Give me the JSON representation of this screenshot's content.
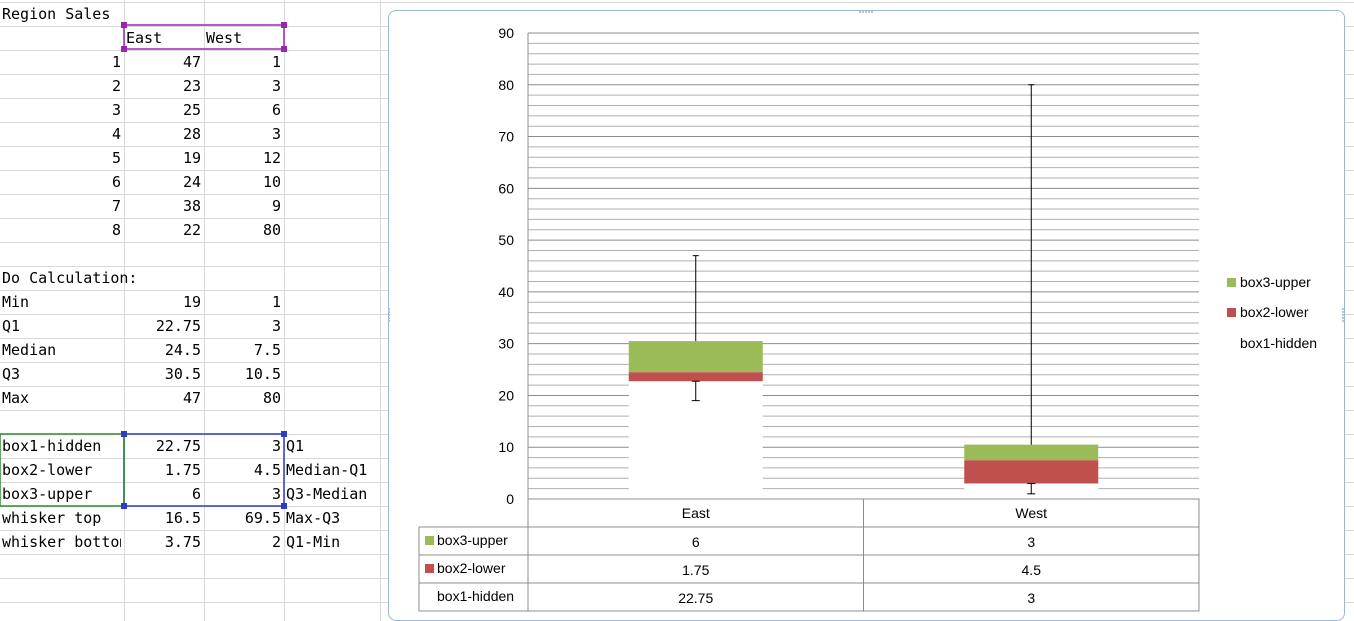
{
  "sheet": {
    "title": "Region Sales",
    "headers": [
      "East",
      "West"
    ],
    "data_rows": [
      [
        "1",
        "47",
        "1"
      ],
      [
        "2",
        "23",
        "3"
      ],
      [
        "3",
        "25",
        "6"
      ],
      [
        "4",
        "28",
        "3"
      ],
      [
        "5",
        "19",
        "12"
      ],
      [
        "6",
        "24",
        "10"
      ],
      [
        "7",
        "38",
        "9"
      ],
      [
        "8",
        "22",
        "80"
      ]
    ],
    "calc_title": "Do Calculation:",
    "calc_rows": [
      [
        "Min",
        "19",
        "1"
      ],
      [
        "Q1",
        "22.75",
        "3"
      ],
      [
        "Median",
        "24.5",
        "7.5"
      ],
      [
        "Q3",
        "30.5",
        "10.5"
      ],
      [
        "Max",
        "47",
        "80"
      ]
    ],
    "box_rows": [
      [
        "box1-hidden",
        "22.75",
        "3",
        "Q1"
      ],
      [
        "box2-lower",
        "1.75",
        "4.5",
        "Median-Q1"
      ],
      [
        "box3-upper",
        "6",
        "3",
        "Q3-Median"
      ],
      [
        "whisker top",
        "16.5",
        "69.5",
        "Max-Q3"
      ],
      [
        "whisker bottom",
        "3.75",
        "2",
        "Q1-Min"
      ]
    ]
  },
  "chart_data": {
    "type": "bar",
    "stacked": true,
    "categories": [
      "East",
      "West"
    ],
    "series": [
      {
        "name": "box1-hidden",
        "values": [
          22.75,
          3
        ],
        "color": "none"
      },
      {
        "name": "box2-lower",
        "values": [
          1.75,
          4.5
        ],
        "color": "#c0504d"
      },
      {
        "name": "box3-upper",
        "values": [
          6,
          3
        ],
        "color": "#9bbb59"
      }
    ],
    "whisker_top": [
      16.5,
      69.5
    ],
    "whisker_bottom": [
      3.75,
      2
    ],
    "ylim": [
      0,
      90
    ],
    "y_ticks": [
      "0",
      "10",
      "20",
      "30",
      "40",
      "50",
      "60",
      "70",
      "80",
      "90"
    ],
    "grid": true,
    "legend_position": "right",
    "legend": [
      "box3-upper",
      "box2-lower",
      "box1-hidden"
    ],
    "data_table": {
      "rows": [
        {
          "label": "box3-upper",
          "values": [
            "6",
            "3"
          ],
          "color": "#9bbb59"
        },
        {
          "label": "box2-lower",
          "values": [
            "1.75",
            "4.5"
          ],
          "color": "#c0504d"
        },
        {
          "label": "box1-hidden",
          "values": [
            "22.75",
            "3"
          ],
          "color": "none"
        }
      ]
    }
  }
}
